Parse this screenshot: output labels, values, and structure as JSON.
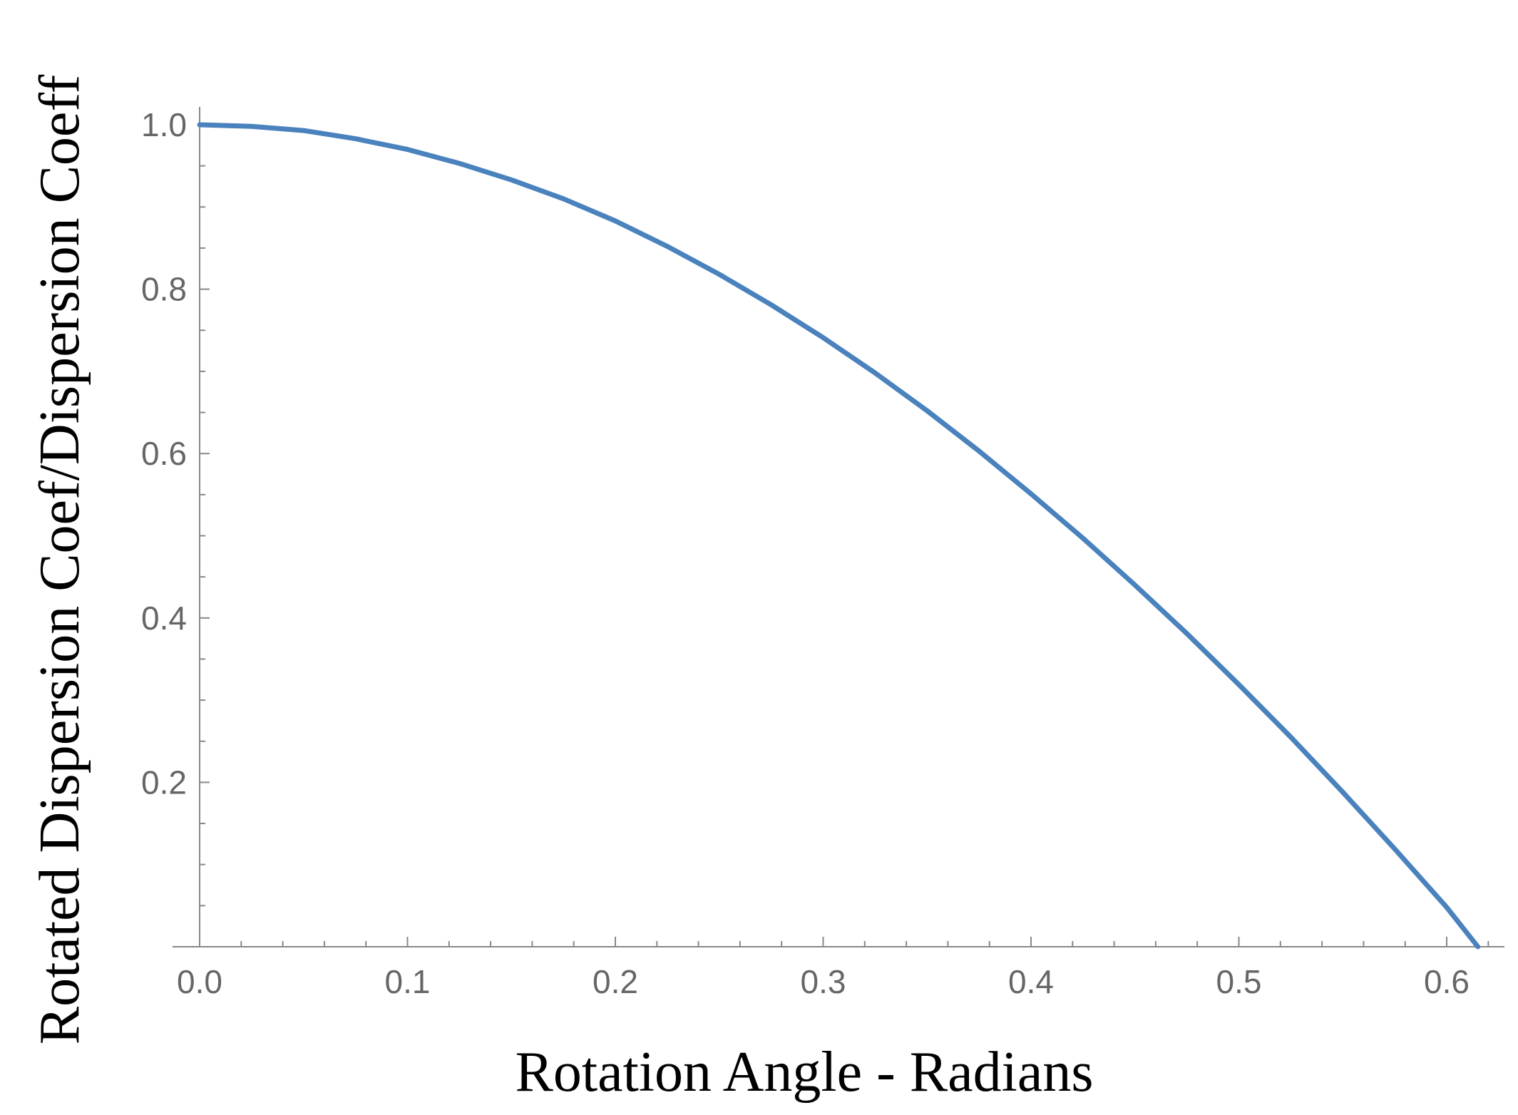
{
  "chart_data": {
    "type": "line",
    "title": "",
    "xlabel": "Rotation Angle - Radians",
    "ylabel": "Rotated Dispersion Coef/Dispersion Coeff",
    "xlim": [
      0,
      0.625
    ],
    "ylim": [
      0,
      1.0
    ],
    "x_ticks": [
      "0.0",
      "0.1",
      "0.2",
      "0.3",
      "0.4",
      "0.5",
      "0.6"
    ],
    "y_ticks": [
      "0.2",
      "0.4",
      "0.6",
      "0.8",
      "1.0"
    ],
    "grid": false,
    "legend": "none",
    "series": [
      {
        "color": "#4a82bd",
        "x": [
          0,
          0.025,
          0.05,
          0.075,
          0.1,
          0.125,
          0.15,
          0.175,
          0.2,
          0.225,
          0.25,
          0.275,
          0.3,
          0.325,
          0.35,
          0.375,
          0.4,
          0.425,
          0.45,
          0.475,
          0.5,
          0.525,
          0.55,
          0.575,
          0.6,
          0.615
        ],
        "y": [
          1.0,
          0.998,
          0.993,
          0.983,
          0.97,
          0.953,
          0.933,
          0.91,
          0.883,
          0.852,
          0.818,
          0.781,
          0.741,
          0.698,
          0.652,
          0.603,
          0.551,
          0.497,
          0.44,
          0.381,
          0.319,
          0.255,
          0.188,
          0.119,
          0.048,
          0.0
        ]
      }
    ]
  }
}
